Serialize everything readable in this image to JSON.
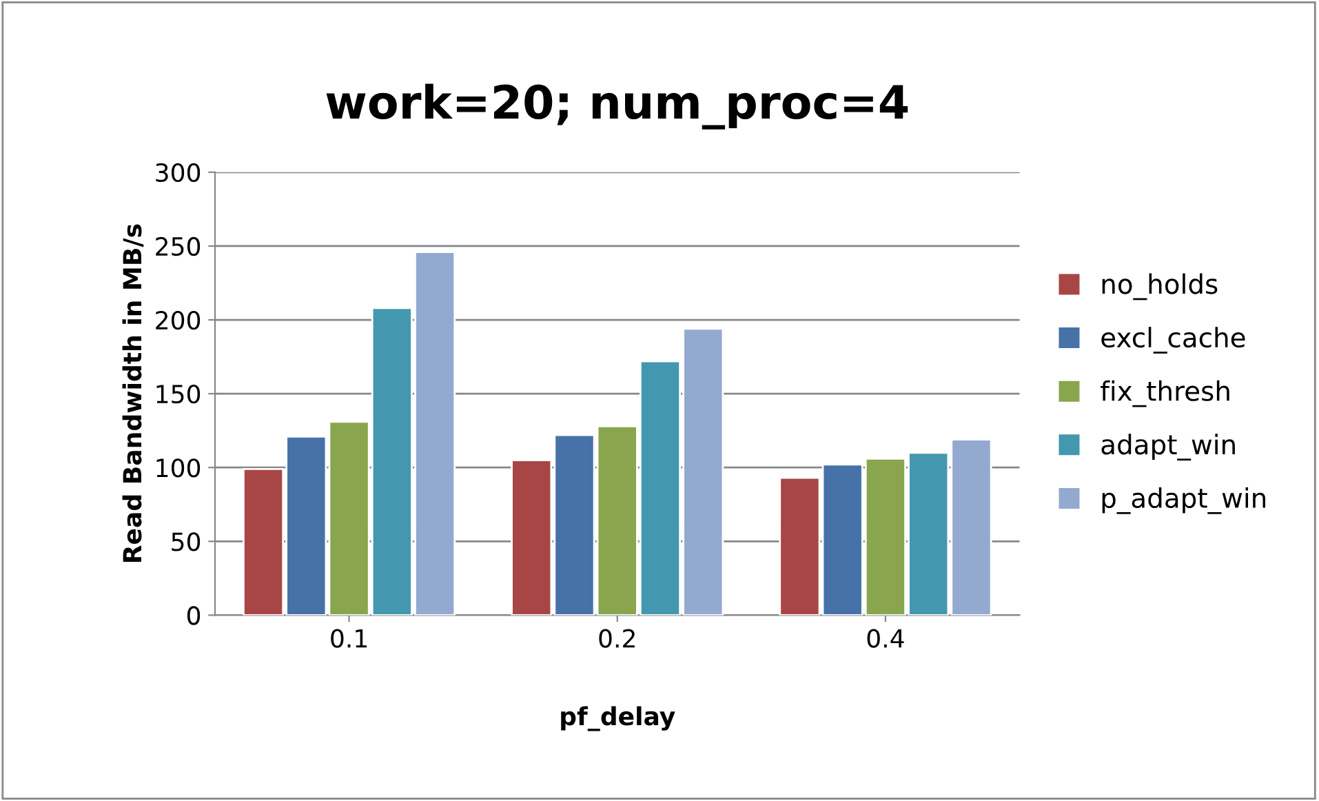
{
  "chart_data": {
    "type": "bar",
    "title": "work=20; num_proc=4",
    "xlabel": "pf_delay",
    "ylabel": "Read Bandwidth in MB/s",
    "categories": [
      "0.1",
      "0.2",
      "0.4"
    ],
    "series": [
      {
        "name": "no_holds",
        "color": "#a84646",
        "values": [
          99,
          105,
          93
        ]
      },
      {
        "name": "excl_cache",
        "color": "#4672a8",
        "values": [
          121,
          122,
          102
        ]
      },
      {
        "name": "fix_thresh",
        "color": "#89a54e",
        "values": [
          131,
          128,
          106
        ]
      },
      {
        "name": "adapt_win",
        "color": "#4397ae",
        "values": [
          208,
          172,
          110
        ]
      },
      {
        "name": "p_adapt_win",
        "color": "#93a9cf",
        "values": [
          246,
          194,
          119
        ]
      }
    ],
    "ylim": [
      0,
      300
    ],
    "yticks": [
      0,
      50,
      100,
      150,
      200,
      250,
      300
    ],
    "grid": "y",
    "legend": "right"
  }
}
